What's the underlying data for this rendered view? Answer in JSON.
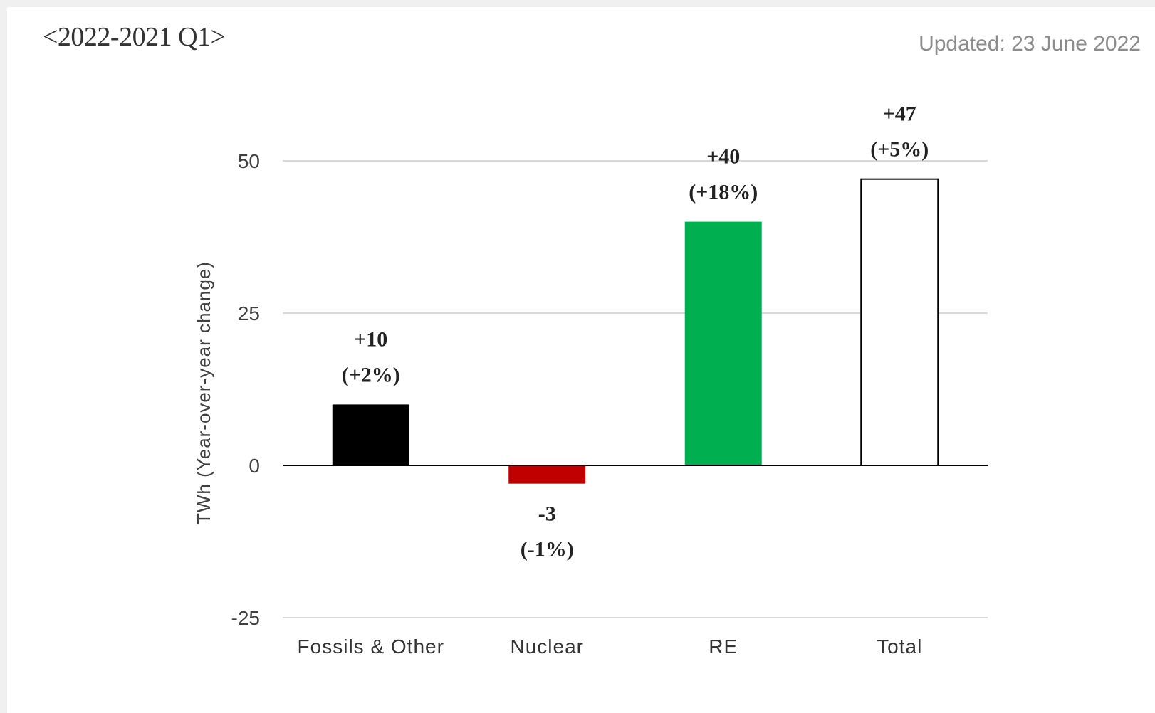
{
  "header": {
    "title": "<2022-2021 Q1>",
    "updated": "Updated: 23 June 2022"
  },
  "chart_data": {
    "type": "bar",
    "title": "<2022-2021 Q1>",
    "ylabel": "TWh (Year-over-year change)",
    "xlabel": "",
    "ylim": [
      -25,
      50
    ],
    "yticks": [
      50,
      25,
      0,
      -25
    ],
    "grid": true,
    "categories": [
      "Fossils & Other",
      "Nuclear",
      "RE",
      "Total"
    ],
    "values": [
      10,
      -3,
      40,
      47
    ],
    "value_labels": [
      "+10",
      "-3",
      "+40",
      "+47"
    ],
    "percent_labels": [
      "(+2%)",
      "(-1%)",
      "(+18%)",
      "(+5%)"
    ],
    "colors": [
      "#000000",
      "#c00000",
      "#00b050",
      "#ffffff"
    ],
    "outline_colors": [
      "#000000",
      "#c00000",
      "#00b050",
      "#000000"
    ]
  }
}
